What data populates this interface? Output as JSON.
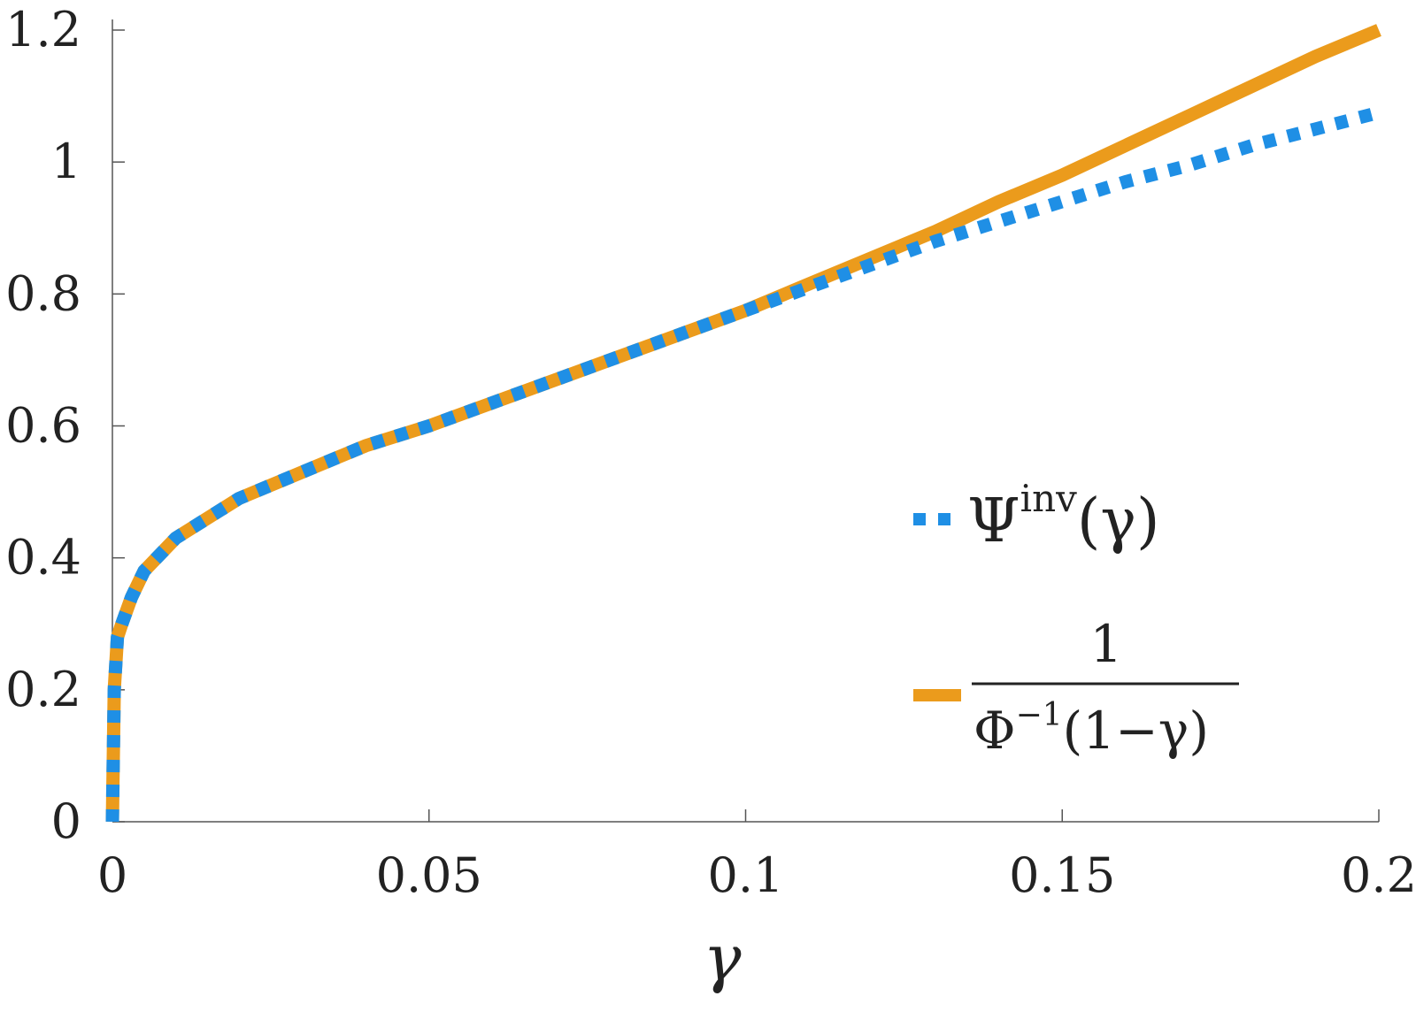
{
  "chart_data": {
    "type": "line",
    "title": "",
    "xlabel": "γ",
    "ylabel": "",
    "xlim": [
      0,
      0.2
    ],
    "ylim": [
      0,
      1.2
    ],
    "x_ticks": [
      0,
      0.05,
      0.1,
      0.15,
      0.2
    ],
    "x_tick_labels": [
      "0",
      "0.05",
      "0.1",
      "0.15",
      "0.2"
    ],
    "y_ticks": [
      0,
      0.2,
      0.4,
      0.6,
      0.8,
      1,
      1.2
    ],
    "y_tick_labels": [
      "0",
      "0.2",
      "0.4",
      "0.6",
      "0.8",
      "1",
      "1.2"
    ],
    "grid": false,
    "legend_position": "center-right",
    "series": [
      {
        "name": "Ψinv(γ)",
        "color": "#1f8fe5",
        "style": "dotted",
        "x": [
          0,
          0.0003,
          0.0008,
          0.0015,
          0.003,
          0.005,
          0.01,
          0.02,
          0.03,
          0.04,
          0.05,
          0.06,
          0.07,
          0.08,
          0.09,
          0.1,
          0.11,
          0.12,
          0.13,
          0.14,
          0.15,
          0.16,
          0.17,
          0.18,
          0.19,
          0.2
        ],
        "y": [
          0,
          0.2,
          0.28,
          0.3,
          0.34,
          0.38,
          0.43,
          0.49,
          0.53,
          0.57,
          0.6,
          0.635,
          0.67,
          0.705,
          0.74,
          0.775,
          0.81,
          0.845,
          0.88,
          0.91,
          0.94,
          0.97,
          0.995,
          1.025,
          1.05,
          1.075
        ]
      },
      {
        "name": "1/(Φ−1(1−γ))",
        "color": "#eb9b1c",
        "style": "solid",
        "x": [
          0,
          0.0003,
          0.0008,
          0.0015,
          0.003,
          0.005,
          0.01,
          0.02,
          0.03,
          0.04,
          0.05,
          0.06,
          0.07,
          0.08,
          0.09,
          0.1,
          0.11,
          0.12,
          0.13,
          0.14,
          0.15,
          0.16,
          0.17,
          0.18,
          0.19,
          0.2
        ],
        "y": [
          0,
          0.2,
          0.28,
          0.3,
          0.34,
          0.38,
          0.43,
          0.49,
          0.53,
          0.57,
          0.6,
          0.635,
          0.67,
          0.705,
          0.74,
          0.775,
          0.815,
          0.855,
          0.895,
          0.94,
          0.98,
          1.025,
          1.07,
          1.115,
          1.16,
          1.2
        ]
      }
    ],
    "legend": {
      "entry1": {
        "main": "Ψ",
        "sup": "inv",
        "arg": "(γ)"
      },
      "entry2": {
        "numerator": "1",
        "denominator_main": "Φ",
        "denominator_sup": "−1",
        "denominator_arg": "(1−γ)"
      }
    }
  }
}
